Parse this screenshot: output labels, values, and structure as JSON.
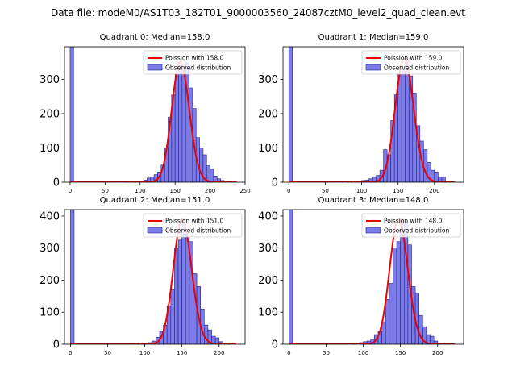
{
  "figure": {
    "suptitle": "Data file: modeM0/AS1T03_182T01_9000003560_24087cztM0_level2_quad_clean.evt"
  },
  "colors": {
    "bar_fill": "#7b7bea",
    "bar_edge": "#22227a",
    "poisson_line": "#ee0000",
    "axes": "#000000"
  },
  "chart_data": [
    {
      "type": "bar",
      "quadrant": 0,
      "title": "Quadrant 0: Median=158.0",
      "median": 158.0,
      "xlim": [
        -8,
        250
      ],
      "ylim": [
        0,
        395
      ],
      "xticks": [
        0,
        50,
        100,
        150,
        200,
        250
      ],
      "yticks": [
        0,
        100,
        200,
        300
      ],
      "legend": [
        "Poission with 158.0",
        "Observed distribution"
      ],
      "legend_position": "top-right",
      "bin_width": 5,
      "bins": [
        [
          0,
          395
        ],
        [
          75,
          2
        ],
        [
          85,
          2
        ],
        [
          95,
          3
        ],
        [
          100,
          4
        ],
        [
          105,
          6
        ],
        [
          110,
          12
        ],
        [
          115,
          16
        ],
        [
          120,
          22
        ],
        [
          125,
          30
        ],
        [
          130,
          50
        ],
        [
          135,
          100
        ],
        [
          140,
          190
        ],
        [
          145,
          255
        ],
        [
          150,
          320
        ],
        [
          155,
          340
        ],
        [
          160,
          330
        ],
        [
          165,
          350
        ],
        [
          170,
          275
        ],
        [
          175,
          215
        ],
        [
          180,
          130
        ],
        [
          185,
          100
        ],
        [
          190,
          80
        ],
        [
          195,
          48
        ],
        [
          200,
          38
        ],
        [
          205,
          18
        ],
        [
          210,
          10
        ],
        [
          215,
          5
        ],
        [
          220,
          2
        ],
        [
          225,
          2
        ]
      ]
    },
    {
      "type": "bar",
      "quadrant": 1,
      "title": "Quadrant 1: Median=159.0",
      "median": 159.0,
      "xlim": [
        -8,
        240
      ],
      "ylim": [
        0,
        395
      ],
      "xticks": [
        0,
        50,
        100,
        150,
        200
      ],
      "yticks": [
        0,
        100,
        200,
        300
      ],
      "legend": [
        "Poission with 159.0",
        "Observed distribution"
      ],
      "legend_position": "top-right",
      "bin_width": 5,
      "bins": [
        [
          0,
          395
        ],
        [
          75,
          2
        ],
        [
          90,
          3
        ],
        [
          95,
          2
        ],
        [
          100,
          5
        ],
        [
          105,
          6
        ],
        [
          110,
          10
        ],
        [
          115,
          15
        ],
        [
          120,
          20
        ],
        [
          125,
          35
        ],
        [
          130,
          95
        ],
        [
          135,
          80
        ],
        [
          140,
          180
        ],
        [
          145,
          255
        ],
        [
          150,
          315
        ],
        [
          155,
          330
        ],
        [
          160,
          360
        ],
        [
          165,
          310
        ],
        [
          170,
          260
        ],
        [
          175,
          165
        ],
        [
          180,
          120
        ],
        [
          185,
          95
        ],
        [
          190,
          58
        ],
        [
          195,
          35
        ],
        [
          200,
          30
        ],
        [
          205,
          15
        ],
        [
          210,
          15
        ],
        [
          215,
          3
        ]
      ]
    },
    {
      "type": "bar",
      "quadrant": 2,
      "title": "Quadrant 2: Median=151.0",
      "median": 151.0,
      "xlim": [
        -8,
        235
      ],
      "ylim": [
        0,
        420
      ],
      "xticks": [
        0,
        50,
        100,
        150,
        200
      ],
      "yticks": [
        0,
        100,
        200,
        300,
        400
      ],
      "legend": [
        "Poission with 151.0",
        "Observed distribution"
      ],
      "legend_position": "top-right",
      "bin_width": 5,
      "bins": [
        [
          0,
          420
        ],
        [
          80,
          2
        ],
        [
          95,
          3
        ],
        [
          100,
          2
        ],
        [
          105,
          5
        ],
        [
          110,
          10
        ],
        [
          115,
          22
        ],
        [
          120,
          40
        ],
        [
          125,
          60
        ],
        [
          130,
          120
        ],
        [
          135,
          170
        ],
        [
          140,
          300
        ],
        [
          145,
          325
        ],
        [
          150,
          390
        ],
        [
          155,
          345
        ],
        [
          160,
          320
        ],
        [
          165,
          220
        ],
        [
          170,
          180
        ],
        [
          175,
          110
        ],
        [
          180,
          60
        ],
        [
          185,
          45
        ],
        [
          190,
          25
        ],
        [
          195,
          20
        ],
        [
          200,
          8
        ],
        [
          205,
          3
        ]
      ]
    },
    {
      "type": "bar",
      "quadrant": 3,
      "title": "Quadrant 3: Median=148.0",
      "median": 148.0,
      "xlim": [
        -8,
        235
      ],
      "ylim": [
        0,
        420
      ],
      "xticks": [
        0,
        50,
        100,
        150,
        200
      ],
      "yticks": [
        0,
        100,
        200,
        300,
        400
      ],
      "legend": [
        "Poission with 148.0",
        "Observed distribution"
      ],
      "legend_position": "top-right",
      "bin_width": 5,
      "bins": [
        [
          0,
          420
        ],
        [
          80,
          2
        ],
        [
          90,
          3
        ],
        [
          95,
          5
        ],
        [
          100,
          8
        ],
        [
          105,
          10
        ],
        [
          110,
          15
        ],
        [
          115,
          30
        ],
        [
          120,
          40
        ],
        [
          125,
          70
        ],
        [
          130,
          140
        ],
        [
          135,
          190
        ],
        [
          140,
          300
        ],
        [
          145,
          320
        ],
        [
          150,
          390
        ],
        [
          155,
          380
        ],
        [
          160,
          310
        ],
        [
          165,
          180
        ],
        [
          170,
          160
        ],
        [
          175,
          90
        ],
        [
          180,
          55
        ],
        [
          185,
          30
        ],
        [
          190,
          25
        ],
        [
          195,
          10
        ],
        [
          200,
          3
        ]
      ]
    }
  ]
}
